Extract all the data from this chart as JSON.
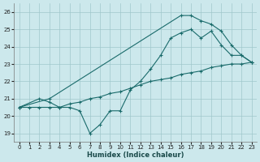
{
  "xlabel": "Humidex (Indice chaleur)",
  "xlim": [
    -0.5,
    23.5
  ],
  "ylim": [
    18.5,
    26.5
  ],
  "yticks": [
    19,
    20,
    21,
    22,
    23,
    24,
    25,
    26
  ],
  "xticks": [
    0,
    1,
    2,
    3,
    4,
    5,
    6,
    7,
    8,
    9,
    10,
    11,
    12,
    13,
    14,
    15,
    16,
    17,
    18,
    19,
    20,
    21,
    22,
    23
  ],
  "bg_color": "#cce8ec",
  "grid_color": "#a0c8cc",
  "line_color": "#1a6b6b",
  "lines": [
    {
      "x": [
        0,
        1,
        2,
        3,
        4,
        5,
        6,
        7,
        8,
        9,
        10,
        11,
        12,
        13,
        14,
        15,
        16,
        17,
        18,
        19,
        20,
        21,
        22,
        23
      ],
      "y": [
        20.5,
        20.5,
        20.5,
        20.5,
        20.5,
        20.7,
        20.8,
        21.0,
        21.1,
        21.3,
        21.4,
        21.6,
        21.8,
        22.0,
        22.1,
        22.2,
        22.4,
        22.5,
        22.6,
        22.8,
        22.9,
        23.0,
        23.0,
        23.1
      ]
    },
    {
      "x": [
        0,
        2,
        3,
        4,
        5,
        6,
        7,
        8,
        9,
        10,
        11,
        12,
        13,
        14,
        15,
        16,
        17,
        18,
        19,
        20,
        21,
        22,
        23
      ],
      "y": [
        20.5,
        21.0,
        20.8,
        20.5,
        20.5,
        20.3,
        19.0,
        19.5,
        20.3,
        20.3,
        21.5,
        22.0,
        22.7,
        23.5,
        24.5,
        24.8,
        25.0,
        24.5,
        24.9,
        24.1,
        23.5,
        23.5,
        23.1
      ]
    },
    {
      "x": [
        0,
        3,
        16,
        17,
        18,
        19,
        20,
        21,
        22,
        23
      ],
      "y": [
        20.5,
        21.0,
        25.8,
        25.8,
        25.5,
        25.3,
        24.9,
        24.1,
        23.5,
        23.1
      ]
    }
  ]
}
